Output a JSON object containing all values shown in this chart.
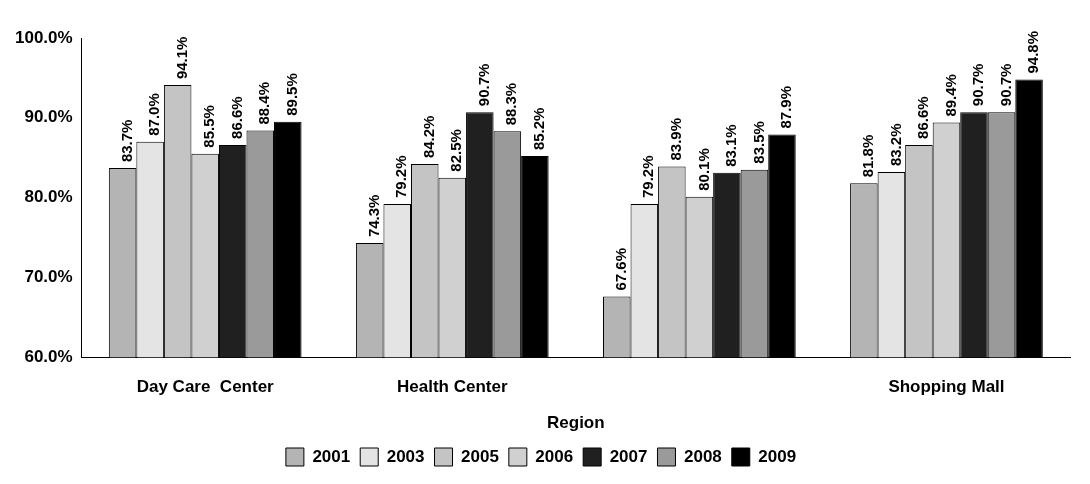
{
  "chart_data": {
    "type": "bar",
    "xlabel": "Region",
    "categories": [
      "Day Care  Center",
      "Health Center",
      null,
      "Shopping Mall"
    ],
    "series": [
      {
        "name": "2001",
        "color": "#b4b4b4",
        "values": [
          83.7,
          74.3,
          67.6,
          81.8
        ],
        "value_labels": [
          "83.7%",
          "74.3%",
          "67.6%",
          "81.8%"
        ]
      },
      {
        "name": "2003",
        "color": "#e4e4e4",
        "values": [
          87.0,
          79.2,
          79.2,
          83.2
        ],
        "value_labels": [
          "87.0%",
          "79.2%",
          "79.2%",
          "83.2%"
        ]
      },
      {
        "name": "2005",
        "color": "#c4c4c4",
        "values": [
          94.1,
          84.2,
          83.9,
          86.6
        ],
        "value_labels": [
          "94.1%",
          "84.2%",
          "83.9%",
          "86.6%"
        ]
      },
      {
        "name": "2006",
        "color": "#d0d0d0",
        "values": [
          85.5,
          82.5,
          80.1,
          89.4
        ],
        "value_labels": [
          "85.5%",
          "82.5%",
          "80.1%",
          "89.4%"
        ]
      },
      {
        "name": "2007",
        "color": "#202020",
        "values": [
          86.6,
          90.7,
          83.1,
          90.7
        ],
        "value_labels": [
          "86.6%",
          "90.7%",
          "83.1%",
          "90.7%"
        ]
      },
      {
        "name": "2008",
        "color": "#9a9a9a",
        "values": [
          88.4,
          88.3,
          83.5,
          90.7
        ],
        "value_labels": [
          "88.4%",
          "88.3%",
          "83.5%",
          "90.7%"
        ]
      },
      {
        "name": "2009",
        "color": "#000000",
        "values": [
          89.5,
          85.2,
          87.9,
          94.8
        ],
        "value_labels": [
          "89.5%",
          "85.2%",
          "87.9%",
          "94.8%"
        ]
      }
    ],
    "ylim": [
      60,
      100
    ],
    "yticks": [
      {
        "value": 60,
        "label": "60.0%"
      },
      {
        "value": 70,
        "label": "70.0%"
      },
      {
        "value": 80,
        "label": "80.0%"
      },
      {
        "value": 90,
        "label": "90.0%"
      },
      {
        "value": 100,
        "label": "100.0%"
      }
    ],
    "grid": false,
    "legend": "bottom"
  }
}
